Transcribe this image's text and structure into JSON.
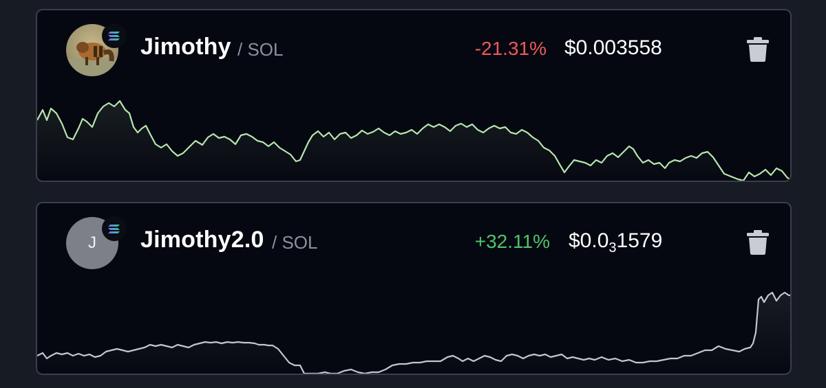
{
  "watchlist": [
    {
      "name": "Jimothy",
      "pair": "/ SOL",
      "change": "-21.31%",
      "price": "$0.003558",
      "direction": "down",
      "avatar": "raccoon-photo",
      "chain_icon": "solana-icon",
      "line_color": "#b8e6b0"
    },
    {
      "name": "Jimothy2.0",
      "pair": "/ SOL",
      "change": "+32.11%",
      "price_prefix": "$0.0",
      "price_subscript": "3",
      "price_suffix": "1579",
      "direction": "up",
      "avatar_letter": "J",
      "chain_icon": "solana-icon",
      "line_color": "#c4c7cf"
    }
  ],
  "colors": {
    "background": "#171b24",
    "card": "#060811",
    "border": "#3a3f4b",
    "negative": "#ec5a5a",
    "positive": "#4fc46b"
  }
}
